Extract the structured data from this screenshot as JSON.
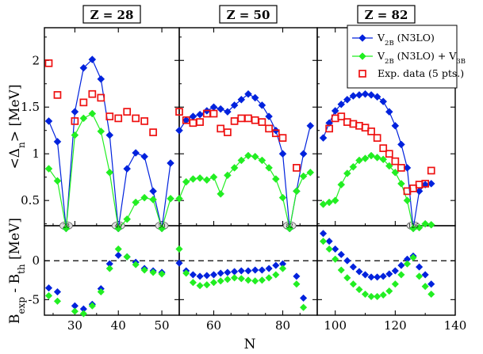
{
  "colors": {
    "blue": "#0022dd",
    "green": "#22ee22",
    "red": "#ee1111",
    "axis": "#000000"
  },
  "chart_data": {
    "type": "line",
    "xlabel": "N",
    "ylabel_top": "<Δn> [MeV]",
    "ylabel_bottom": "Bexp - Bth [MeV]",
    "panels": [
      {
        "title": "Z = 28",
        "xlim": [
          23,
          54
        ],
        "xticks": [
          30,
          40,
          50
        ],
        "magic": [
          "28",
          "40",
          "50"
        ],
        "magic_x": [
          28,
          40,
          50
        ]
      },
      {
        "title": "Z = 50",
        "xlim": [
          50,
          90
        ],
        "xticks": [
          60,
          80
        ],
        "magic": [
          "82"
        ],
        "magic_x": [
          82
        ]
      },
      {
        "title": "Z = 82",
        "xlim": [
          94,
          140
        ],
        "xticks": [
          100,
          120,
          140
        ],
        "magic": [
          "126"
        ],
        "magic_x": [
          126
        ]
      }
    ],
    "top_ylim": [
      0.23,
      2.35
    ],
    "top_yticks": [
      0.5,
      1,
      1.5,
      2
    ],
    "bottom_ylim": [
      -7,
      4.5
    ],
    "bottom_yticks": [
      -5,
      0
    ],
    "series": [
      {
        "name": "V2B (N3LO)",
        "color": "blue",
        "marker": "diamond",
        "panels": [
          {
            "x": [
              24,
              26,
              28,
              30,
              32,
              34,
              36,
              38,
              40,
              42,
              44,
              46,
              48,
              50,
              52
            ],
            "y": [
              1.35,
              1.13,
              0.2,
              1.45,
              1.92,
              2.01,
              1.8,
              1.2,
              0.2,
              0.84,
              1.01,
              0.97,
              0.6,
              0.2,
              0.9
            ]
          },
          {
            "x": [
              50,
              52,
              54,
              56,
              58,
              60,
              62,
              64,
              66,
              68,
              70,
              72,
              74,
              76,
              78,
              80,
              82,
              84,
              86,
              88
            ],
            "y": [
              1.25,
              1.36,
              1.4,
              1.42,
              1.46,
              1.5,
              1.48,
              1.45,
              1.52,
              1.58,
              1.64,
              1.6,
              1.52,
              1.4,
              1.25,
              1.0,
              0.2,
              0.6,
              1.0,
              1.3
            ]
          },
          {
            "x": [
              96,
              98,
              100,
              102,
              104,
              106,
              108,
              110,
              112,
              114,
              116,
              118,
              120,
              122,
              124,
              126,
              128,
              130,
              132
            ],
            "y": [
              1.17,
              1.33,
              1.46,
              1.53,
              1.58,
              1.62,
              1.63,
              1.64,
              1.63,
              1.61,
              1.56,
              1.45,
              1.3,
              1.1,
              0.85,
              0.2,
              0.6,
              0.67,
              0.68
            ]
          }
        ]
      },
      {
        "name": "V2B (N3LO) + V3B",
        "color": "green",
        "marker": "diamond",
        "panels": [
          {
            "x": [
              24,
              26,
              28,
              30,
              32,
              34,
              36,
              38,
              40,
              42,
              44,
              46,
              48,
              50,
              52
            ],
            "y": [
              0.84,
              0.71,
              0.2,
              1.2,
              1.38,
              1.43,
              1.24,
              0.8,
              0.2,
              0.3,
              0.48,
              0.53,
              0.51,
              0.2,
              0.52
            ]
          },
          {
            "x": [
              50,
              52,
              54,
              56,
              58,
              60,
              62,
              64,
              66,
              68,
              70,
              72,
              74,
              76,
              78,
              80,
              82,
              84,
              86,
              88
            ],
            "y": [
              0.52,
              0.7,
              0.73,
              0.74,
              0.72,
              0.75,
              0.57,
              0.77,
              0.85,
              0.93,
              0.98,
              0.97,
              0.93,
              0.85,
              0.73,
              0.53,
              0.2,
              0.6,
              0.76,
              0.8
            ]
          },
          {
            "x": [
              96,
              98,
              100,
              102,
              104,
              106,
              108,
              110,
              112,
              114,
              116,
              118,
              120,
              122,
              124,
              126,
              128,
              130,
              132
            ],
            "y": [
              0.46,
              0.48,
              0.5,
              0.67,
              0.79,
              0.86,
              0.93,
              0.95,
              0.98,
              0.96,
              0.94,
              0.87,
              0.8,
              0.68,
              0.5,
              0.2,
              0.21,
              0.25,
              0.24
            ]
          }
        ]
      },
      {
        "name": "Exp. data (5 pts.)",
        "color": "red",
        "marker": "square",
        "panels": [
          {
            "x": [
              24,
              26,
              30,
              32,
              34,
              36,
              38,
              40,
              42,
              44,
              46,
              48
            ],
            "y": [
              1.97,
              1.63,
              1.35,
              1.55,
              1.64,
              1.6,
              1.4,
              1.38,
              1.45,
              1.38,
              1.35,
              1.23
            ]
          },
          {
            "x": [
              50,
              52,
              54,
              56,
              58,
              60,
              62,
              64,
              66,
              68,
              70,
              72,
              74,
              76,
              78,
              80,
              84
            ],
            "y": [
              1.45,
              1.36,
              1.33,
              1.34,
              1.43,
              1.43,
              1.27,
              1.23,
              1.35,
              1.38,
              1.38,
              1.36,
              1.34,
              1.27,
              1.22,
              1.17,
              0.85
            ]
          },
          {
            "x": [
              98,
              100,
              102,
              104,
              106,
              108,
              110,
              112,
              114,
              116,
              118,
              120,
              122,
              124,
              126,
              128,
              130,
              132
            ],
            "y": [
              1.27,
              1.38,
              1.4,
              1.34,
              1.32,
              1.3,
              1.28,
              1.24,
              1.17,
              1.06,
              1.0,
              0.92,
              0.85,
              0.6,
              0.63,
              0.67,
              0.68,
              0.82
            ]
          }
        ]
      }
    ],
    "bottom_series": [
      {
        "name": "V2B (N3LO)",
        "color": "blue",
        "panels": [
          {
            "x": [
              24,
              26,
              30,
              32,
              34,
              36,
              38,
              40,
              42,
              44,
              46,
              48,
              50
            ],
            "y": [
              -3.5,
              -4.0,
              -5.8,
              -6.2,
              -5.6,
              -3.6,
              -0.4,
              0.7,
              0.5,
              -0.2,
              -1.0,
              -1.3,
              -1.5
            ]
          },
          {
            "x": [
              50,
              52,
              54,
              56,
              58,
              60,
              62,
              64,
              66,
              68,
              70,
              72,
              74,
              76,
              78,
              80,
              84,
              86
            ],
            "y": [
              -0.3,
              -1.3,
              -1.8,
              -2.0,
              -1.9,
              -1.8,
              -1.6,
              -1.5,
              -1.4,
              -1.3,
              -1.3,
              -1.2,
              -1.2,
              -1.0,
              -0.6,
              -0.4,
              -2.0,
              -4.8
            ]
          },
          {
            "x": [
              96,
              98,
              100,
              102,
              104,
              106,
              108,
              110,
              112,
              114,
              116,
              118,
              120,
              122,
              124,
              126,
              128,
              130,
              132
            ],
            "y": [
              3.5,
              2.5,
              1.5,
              0.8,
              0.0,
              -0.8,
              -1.4,
              -1.8,
              -2.1,
              -2.1,
              -2.0,
              -1.7,
              -1.3,
              -0.6,
              0.2,
              0.6,
              -0.8,
              -1.8,
              -3.0
            ]
          }
        ]
      },
      {
        "name": "V2B (N3LO) + V3B",
        "color": "green",
        "panels": [
          {
            "x": [
              24,
              26,
              30,
              32,
              34,
              36,
              38,
              40,
              42,
              44,
              46,
              48,
              50
            ],
            "y": [
              -4.5,
              -5.2,
              -6.5,
              -6.8,
              -5.8,
              -4.0,
              -1.0,
              1.5,
              0.5,
              -0.5,
              -1.2,
              -1.5,
              -1.7
            ]
          },
          {
            "x": [
              50,
              52,
              54,
              56,
              58,
              60,
              62,
              64,
              66,
              68,
              70,
              72,
              74,
              76,
              78,
              80,
              84,
              86
            ],
            "y": [
              1.5,
              -1.6,
              -2.8,
              -3.2,
              -3.1,
              -2.8,
              -2.6,
              -2.4,
              -2.2,
              -2.3,
              -2.5,
              -2.6,
              -2.5,
              -2.2,
              -1.8,
              -1.0,
              -3.0,
              -6.0
            ]
          },
          {
            "x": [
              96,
              98,
              100,
              102,
              104,
              106,
              108,
              110,
              112,
              114,
              116,
              118,
              120,
              122,
              124,
              126,
              128,
              130,
              132
            ],
            "y": [
              2.5,
              1.5,
              0.2,
              -1.2,
              -2.2,
              -3.0,
              -3.7,
              -4.3,
              -4.6,
              -4.6,
              -4.4,
              -3.9,
              -3.0,
              -1.8,
              -0.4,
              0.4,
              -2.0,
              -3.3,
              -4.3
            ]
          }
        ]
      }
    ],
    "xticklabels": [
      "30",
      "40",
      "50",
      "60",
      "80",
      "100",
      "120",
      "140"
    ],
    "ytick_top_labels": [
      "0.5",
      "1",
      "1.5",
      "2"
    ],
    "ytick_bottom_labels": [
      "-5",
      "0"
    ]
  },
  "legend": [
    {
      "label": "V2B (N3LO)",
      "base": "V",
      "sub": "2B",
      "rest": " (N3LO)"
    },
    {
      "label": "V2B (N3LO) + V3B",
      "base": "V",
      "sub": "2B",
      "rest": " (N3LO) + V",
      "sub2": "3B"
    },
    {
      "label": "Exp. data (5 pts.)",
      "base": "Exp. data (5 pts.)"
    }
  ]
}
